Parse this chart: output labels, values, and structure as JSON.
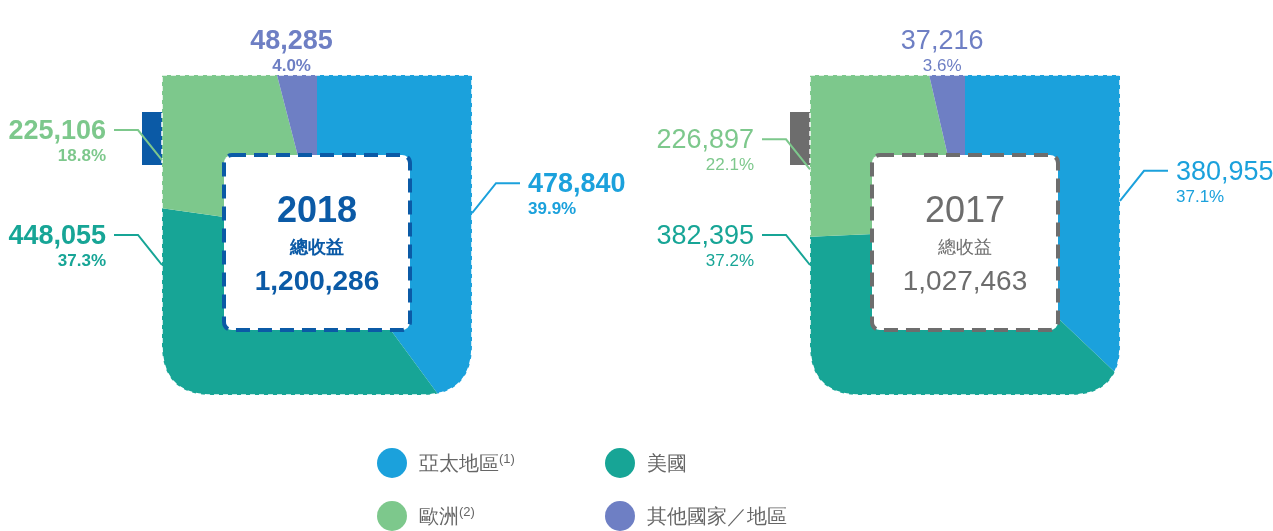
{
  "chart_data": [
    {
      "type": "pie",
      "title": "2018",
      "subtitle": "總收益",
      "annotations": [
        "1,200,286"
      ],
      "categories": [
        "亞太地區$^{(1)}$",
        "美國",
        "歐洲$^{(2)}$",
        "其他國家／地區"
      ],
      "values": [
        478840,
        448055,
        225106,
        48285
      ],
      "colors": [
        "#1ba1dc",
        "#17a596",
        "#7dc88c",
        "#6e7fc4"
      ],
      "value_labels": [
        "478,840\n39.9%",
        "448,055\n37.3%",
        "225,106\n18.8%",
        "48,285\n4.0%"
      ],
      "legend": "bottom"
    },
    {
      "type": "pie",
      "title": "2017",
      "subtitle": "總收益",
      "annotations": [
        "1,027,463"
      ],
      "values": [
        380955,
        382395,
        226897,
        37216
      ],
      "colors": [
        "#1ba1dc",
        "#17a596",
        "#7dc88c",
        "#6e7fc4"
      ],
      "value_labels": [
        "380,955\n37.1%",
        "382,395\n37.2%",
        "226,897\n22.1%",
        "37,216\n3.6%"
      ]
    }
  ]
}
